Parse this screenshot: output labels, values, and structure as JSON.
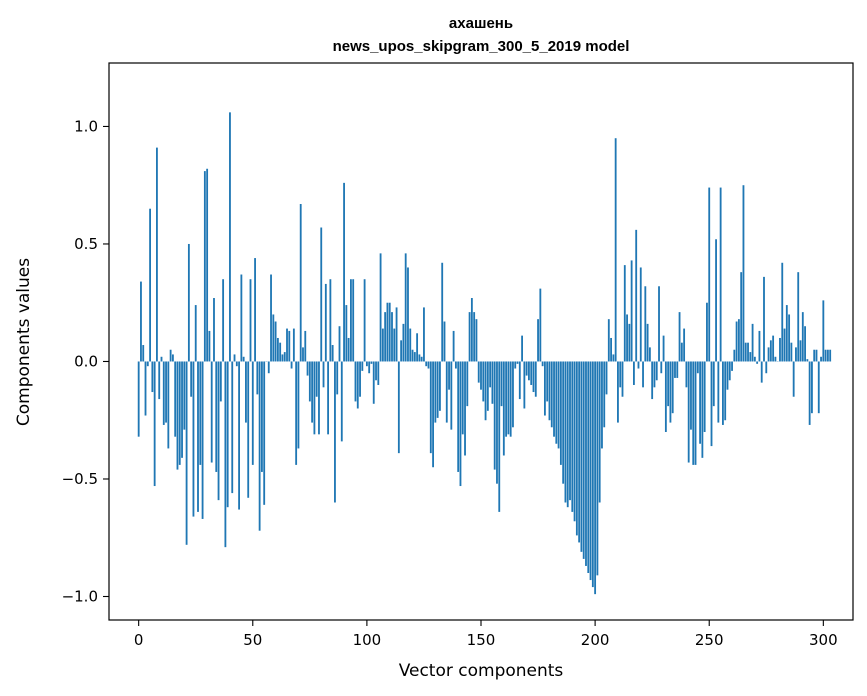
{
  "chart_data": {
    "type": "bar",
    "title": [
      "ахашень",
      "news_upos_skipgram_300_5_2019 model"
    ],
    "xlabel": "Vector components",
    "ylabel": "Components values",
    "xlim": [
      -13,
      313
    ],
    "ylim": [
      -1.1,
      1.27
    ],
    "xticks": [
      0,
      50,
      100,
      150,
      200,
      250,
      300
    ],
    "yticks": [
      -1.0,
      -0.5,
      0.0,
      0.5,
      1.0
    ],
    "ytick_labels": [
      "−1.0",
      "−0.5",
      "0.0",
      "0.5",
      "1.0"
    ],
    "grid": false,
    "legend": "none",
    "bar_color": "#1f77b4",
    "x_start": 0,
    "values": [
      -0.32,
      0.34,
      0.07,
      -0.23,
      -0.02,
      0.65,
      -0.13,
      -0.53,
      0.91,
      -0.16,
      0.02,
      -0.27,
      -0.26,
      -0.37,
      0.05,
      0.03,
      -0.32,
      -0.46,
      -0.44,
      -0.41,
      -0.29,
      -0.78,
      0.5,
      -0.15,
      -0.66,
      0.24,
      -0.64,
      -0.44,
      -0.67,
      0.81,
      0.82,
      0.13,
      -0.43,
      0.27,
      -0.47,
      -0.59,
      -0.17,
      0.35,
      -0.79,
      -0.62,
      1.06,
      -0.56,
      0.03,
      -0.02,
      -0.63,
      0.37,
      0.02,
      -0.26,
      -0.58,
      0.35,
      -0.44,
      0.44,
      -0.14,
      -0.72,
      -0.47,
      -0.61,
      0.0,
      -0.05,
      0.37,
      0.2,
      0.17,
      0.1,
      0.08,
      0.03,
      0.04,
      0.14,
      0.13,
      -0.03,
      0.14,
      -0.44,
      -0.37,
      0.67,
      0.06,
      0.13,
      -0.06,
      -0.17,
      -0.26,
      -0.31,
      -0.15,
      -0.31,
      0.57,
      -0.11,
      0.33,
      -0.31,
      0.35,
      0.07,
      -0.6,
      -0.14,
      0.15,
      -0.34,
      0.76,
      0.24,
      0.1,
      0.35,
      0.35,
      -0.17,
      -0.2,
      -0.15,
      -0.04,
      0.35,
      -0.02,
      -0.05,
      -0.01,
      -0.18,
      -0.08,
      -0.1,
      0.46,
      0.14,
      0.21,
      0.25,
      0.25,
      0.21,
      0.14,
      0.23,
      -0.39,
      0.09,
      0.16,
      0.46,
      0.4,
      0.14,
      0.05,
      0.04,
      0.12,
      0.03,
      0.02,
      0.23,
      -0.02,
      -0.03,
      -0.39,
      -0.45,
      -0.26,
      -0.24,
      -0.21,
      0.42,
      0.17,
      -0.26,
      -0.12,
      -0.29,
      0.13,
      -0.03,
      -0.47,
      -0.53,
      -0.31,
      -0.4,
      -0.19,
      0.21,
      0.27,
      0.21,
      0.18,
      -0.09,
      -0.12,
      -0.17,
      -0.25,
      -0.21,
      -0.11,
      -0.18,
      -0.46,
      -0.52,
      -0.64,
      -0.19,
      -0.4,
      -0.32,
      -0.31,
      -0.32,
      -0.28,
      -0.03,
      -0.01,
      -0.16,
      0.11,
      -0.2,
      -0.06,
      -0.08,
      -0.1,
      -0.13,
      -0.15,
      0.18,
      0.31,
      -0.02,
      -0.23,
      -0.17,
      -0.25,
      -0.28,
      -0.32,
      -0.35,
      -0.37,
      -0.44,
      -0.52,
      -0.6,
      -0.62,
      -0.59,
      -0.64,
      -0.68,
      -0.74,
      -0.77,
      -0.81,
      -0.84,
      -0.87,
      -0.9,
      -0.93,
      -0.96,
      -0.99,
      -0.91,
      -0.6,
      -0.37,
      -0.28,
      -0.14,
      0.18,
      0.1,
      0.03,
      0.95,
      -0.26,
      -0.11,
      -0.15,
      0.41,
      0.2,
      0.16,
      0.43,
      -0.1,
      0.56,
      -0.03,
      0.4,
      -0.11,
      0.32,
      0.16,
      0.06,
      -0.16,
      -0.11,
      -0.08,
      0.32,
      -0.05,
      0.11,
      -0.3,
      -0.19,
      -0.26,
      -0.22,
      -0.07,
      -0.07,
      0.21,
      0.08,
      0.14,
      -0.11,
      -0.43,
      -0.29,
      -0.44,
      -0.44,
      -0.05,
      -0.35,
      -0.41,
      -0.3,
      0.25,
      0.74,
      -0.36,
      -0.19,
      0.52,
      -0.26,
      0.74,
      -0.27,
      -0.25,
      -0.12,
      -0.08,
      -0.04,
      0.05,
      0.17,
      0.18,
      0.38,
      0.75,
      0.08,
      0.08,
      0.04,
      0.16,
      0.02,
      -0.01,
      0.13,
      -0.09,
      0.36,
      -0.05,
      0.06,
      0.09,
      0.11,
      0.02,
      0.0,
      0.1,
      0.42,
      0.14,
      0.24,
      0.2,
      0.08,
      -0.15,
      0.06,
      0.38,
      0.09,
      0.21,
      0.15,
      0.01,
      -0.27,
      -0.22,
      0.05,
      0.05,
      -0.22,
      0.02,
      0.26,
      0.05,
      0.05,
      0.05
    ]
  }
}
